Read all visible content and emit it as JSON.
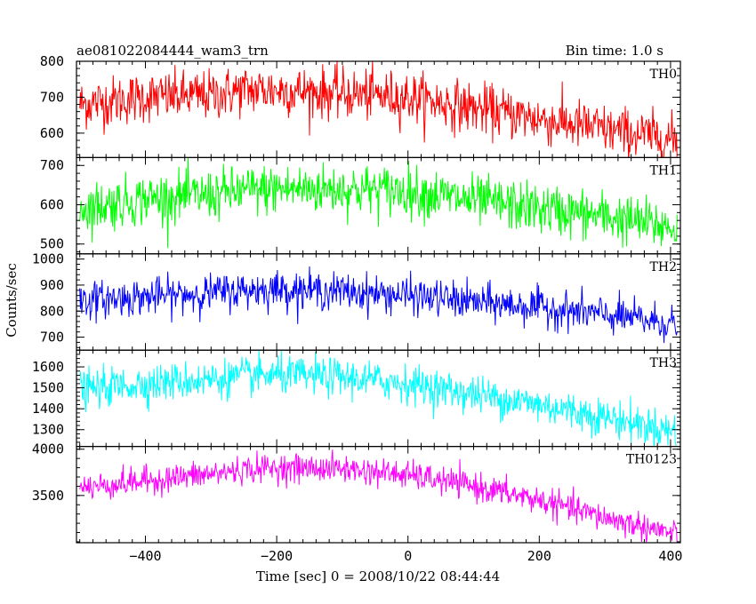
{
  "chart_data": {
    "type": "line",
    "title": "ae081022084444_wam3_trn",
    "subtitle": "Bin time: 1.0 s",
    "xlabel": "Time [sec] 0 = 2008/10/22 08:44:44",
    "ylabel": "Counts/sec",
    "xlim": [
      -505,
      415
    ],
    "xticks": [
      -400,
      -200,
      0,
      200,
      400
    ],
    "grid": false,
    "series": [
      {
        "name": "TH0",
        "color": "#ff0000",
        "ylim": [
          532,
          800
        ],
        "yticks": [
          600,
          700,
          800
        ],
        "x": [
          -500,
          -400,
          -300,
          -250,
          -200,
          -100,
          0,
          100,
          200,
          300,
          410
        ],
        "values": [
          680,
          700,
          705,
          720,
          720,
          710,
          700,
          670,
          640,
          610,
          580
        ],
        "noise": 35
      },
      {
        "name": "TH1",
        "color": "#00ff00",
        "ylim": [
          475,
          720
        ],
        "yticks": [
          500,
          600,
          700
        ],
        "x": [
          -500,
          -400,
          -300,
          -250,
          -200,
          -100,
          0,
          100,
          200,
          300,
          410
        ],
        "values": [
          590,
          615,
          625,
          635,
          640,
          640,
          635,
          610,
          590,
          570,
          540
        ],
        "noise": 32
      },
      {
        "name": "TH2",
        "color": "#0000ff",
        "ylim": [
          650,
          1020
        ],
        "yticks": [
          700,
          800,
          900,
          1000
        ],
        "x": [
          -500,
          -400,
          -300,
          -250,
          -200,
          -100,
          0,
          100,
          200,
          300,
          410
        ],
        "values": [
          840,
          855,
          870,
          880,
          885,
          875,
          860,
          835,
          815,
          785,
          750
        ],
        "noise": 35
      },
      {
        "name": "TH3",
        "color": "#00ffff",
        "ylim": [
          1220,
          1680
        ],
        "yticks": [
          1300,
          1400,
          1500,
          1600
        ],
        "x": [
          -500,
          -400,
          -300,
          -250,
          -200,
          -100,
          0,
          100,
          200,
          300,
          410
        ],
        "values": [
          1490,
          1520,
          1540,
          1555,
          1560,
          1550,
          1520,
          1470,
          1420,
          1360,
          1290
        ],
        "noise": 45
      },
      {
        "name": "TH0123",
        "color": "#ff00ff",
        "ylim": [
          2990,
          4030
        ],
        "yticks": [
          3500,
          4000
        ],
        "x": [
          -500,
          -400,
          -300,
          -250,
          -200,
          -100,
          0,
          100,
          200,
          300,
          410
        ],
        "values": [
          3580,
          3660,
          3730,
          3780,
          3800,
          3790,
          3720,
          3600,
          3450,
          3260,
          3080
        ],
        "noise": 75
      }
    ]
  }
}
